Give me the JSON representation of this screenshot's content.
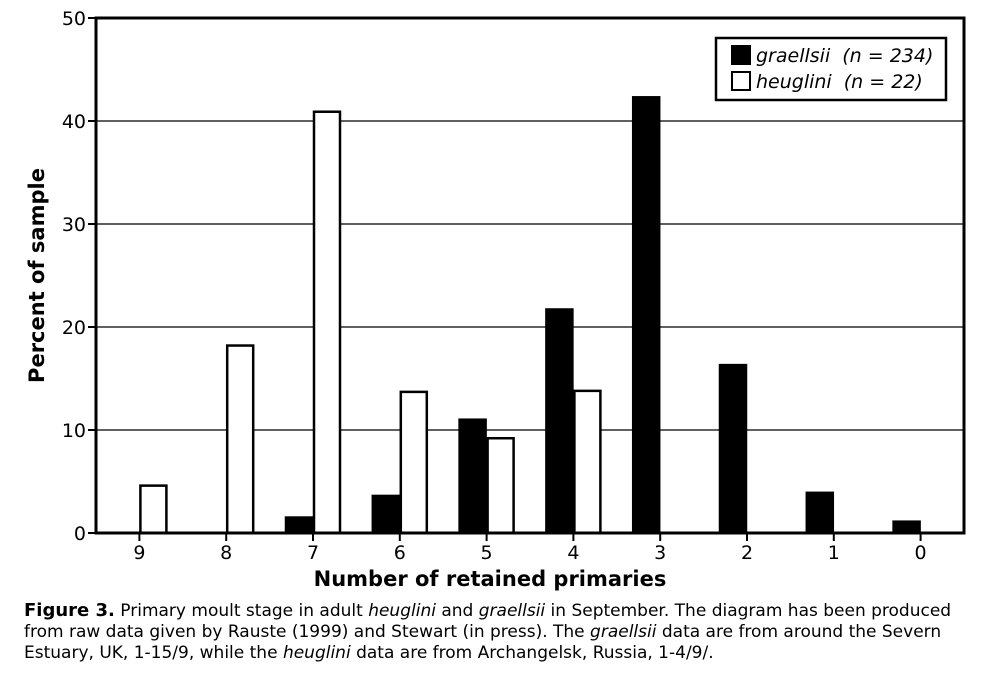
{
  "chart_data": {
    "type": "bar",
    "categories": [
      "9",
      "8",
      "7",
      "6",
      "5",
      "4",
      "3",
      "2",
      "1",
      "0"
    ],
    "series": [
      {
        "name": "graellsii",
        "n": 234,
        "fill": "#000000",
        "values": [
          0,
          0,
          1.5,
          3.6,
          11.0,
          21.7,
          42.3,
          16.3,
          3.9,
          1.1
        ]
      },
      {
        "name": "heuglini",
        "n": 22,
        "fill": "#ffffff",
        "values": [
          4.6,
          18.2,
          40.9,
          13.7,
          9.2,
          13.8,
          0,
          0,
          0,
          0
        ]
      }
    ],
    "xlabel": "Number of retained primaries",
    "ylabel": "Percent of sample",
    "ylim": [
      0,
      50
    ],
    "yticks": [
      "0",
      "10",
      "20",
      "30",
      "40",
      "50"
    ],
    "grid": "horizontal",
    "legend": {
      "position": "top-right",
      "items": [
        {
          "species": "graellsii",
          "count": "(n = 234)"
        },
        {
          "species": "heuglini",
          "count": "(n = 22)"
        }
      ]
    }
  },
  "caption": {
    "label": "Figure 3.",
    "parts": [
      {
        "t": " Primary moult stage in adult ",
        "i": false
      },
      {
        "t": "heuglini",
        "i": true
      },
      {
        "t": " and ",
        "i": false
      },
      {
        "t": "graellsii",
        "i": true
      },
      {
        "t": " in September. The diagram has been produced from raw data given by Rauste (1999) and Stewart (in press). The ",
        "i": false
      },
      {
        "t": "graellsii",
        "i": true
      },
      {
        "t": " data are from around the Severn Estuary, UK, 1-15/9, while the ",
        "i": false
      },
      {
        "t": "heuglini",
        "i": true
      },
      {
        "t": " data are from Archangelsk, Russia, 1-4/9/.",
        "i": false
      }
    ]
  }
}
